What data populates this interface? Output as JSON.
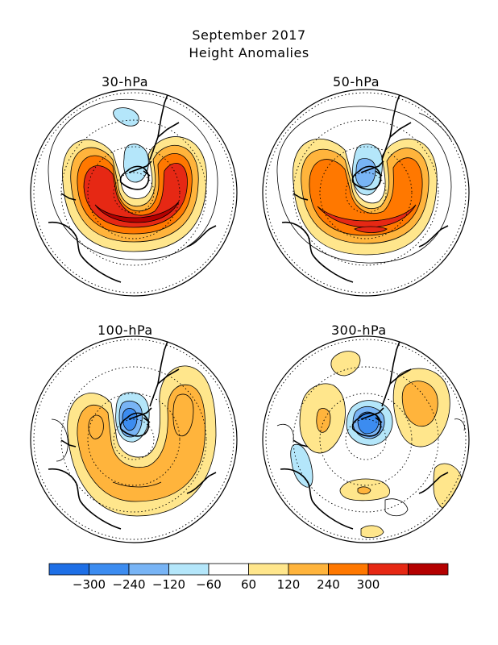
{
  "title": {
    "line1": "September 2017",
    "line2": "Height Anomalies"
  },
  "panels": [
    {
      "label": "30-hPa"
    },
    {
      "label": "50-hPa"
    },
    {
      "label": "100-hPa"
    },
    {
      "label": "300-hPa"
    }
  ],
  "colorbar": {
    "colors": [
      "#1e6fe6",
      "#3c8cf0",
      "#78b4f5",
      "#b4e6fa",
      "#ffffff",
      "#ffe68c",
      "#ffb43c",
      "#ff7800",
      "#e62814",
      "#b40000"
    ],
    "tick_labels": [
      "-300",
      "-240",
      "-120",
      "-60",
      "60",
      "120",
      "240",
      "300"
    ]
  }
}
